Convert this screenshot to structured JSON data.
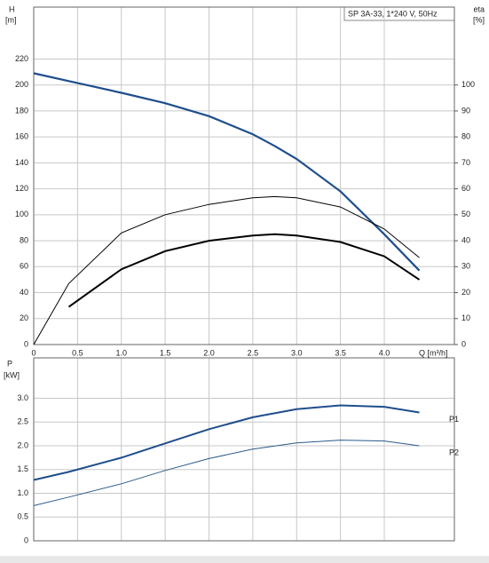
{
  "chart_data": [
    {
      "type": "line",
      "title": "SP 3A-33, 1*240 V, 50Hz",
      "ylabel": [
        "H",
        "[m]"
      ],
      "y2label": [
        "eta",
        "[%]"
      ],
      "xlabel": "Q [m³/h]",
      "x": [
        0,
        0.4,
        1.0,
        1.5,
        2.0,
        2.5,
        2.75,
        3.0,
        3.5,
        4.0,
        4.4
      ],
      "series": [
        {
          "color": "#1f4e8c",
          "values": [
            209,
            203,
            194,
            186,
            176,
            162,
            153,
            143,
            118,
            85,
            57
          ]
        },
        {
          "color": "#000000",
          "axis": "y2",
          "values": [
            0,
            23.5,
            43,
            50,
            54,
            56.5,
            57,
            56.5,
            53,
            44.5,
            33.5
          ]
        },
        {
          "color": "#000000",
          "axis": "y2",
          "values": [
            null,
            14.5,
            29,
            36,
            40,
            42,
            42.5,
            42,
            39.5,
            34,
            25
          ]
        }
      ],
      "xlim": [
        0,
        4.8
      ],
      "xticks": [
        0,
        0.5,
        {
          "value": 1,
          "label": "1.0"
        },
        1.5,
        {
          "value": 2,
          "label": "2.0"
        },
        2.5,
        {
          "value": 3,
          "label": "3.0"
        },
        3.5,
        {
          "value": 4,
          "label": "4.0"
        }
      ],
      "ylim": [
        0,
        260
      ],
      "yticks": [
        0,
        20,
        40,
        60,
        80,
        100,
        120,
        140,
        160,
        180,
        200,
        220
      ],
      "y2lim": [
        0,
        130
      ],
      "y2ticks": [
        0,
        10,
        20,
        30,
        40,
        50,
        60,
        70,
        80,
        90,
        100
      ],
      "grid": true
    },
    {
      "type": "line",
      "ylabel": [
        "P",
        "[kW]"
      ],
      "x": [
        0,
        0.4,
        1.0,
        1.5,
        2.0,
        2.5,
        3.0,
        3.5,
        4.0,
        4.4
      ],
      "series": [
        {
          "name": "P1",
          "color": "#1f4e8c",
          "values": [
            1.28,
            1.45,
            1.75,
            2.05,
            2.35,
            2.6,
            2.77,
            2.85,
            2.82,
            2.7
          ]
        },
        {
          "name": "P2",
          "color": "#2b5a8a",
          "values": [
            0.74,
            0.92,
            1.2,
            1.48,
            1.73,
            1.93,
            2.06,
            2.12,
            2.1,
            2.0
          ]
        }
      ],
      "xlim": [
        0,
        4.8
      ],
      "ylim": [
        0,
        3.85
      ],
      "yticks": [
        0,
        0.5,
        {
          "value": 1,
          "label": "1.0"
        },
        1.5,
        {
          "value": 2,
          "label": "2.0"
        },
        2.5,
        {
          "value": 3,
          "label": "3.0"
        }
      ],
      "grid": true
    }
  ]
}
